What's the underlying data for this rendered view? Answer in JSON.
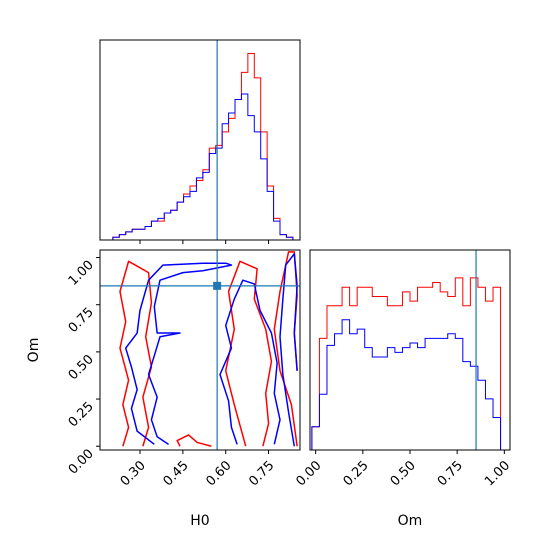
{
  "chart_data": [
    {
      "panel": "H0 marginal",
      "type": "histogram",
      "title": "",
      "xlabel": "",
      "ylabel": "",
      "xlim": [
        0.16,
        0.86
      ],
      "bins_left": [
        0.16,
        0.1825,
        0.205,
        0.2275,
        0.25,
        0.2725,
        0.295,
        0.3175,
        0.34,
        0.3625,
        0.385,
        0.4075,
        0.43,
        0.4525,
        0.475,
        0.4975,
        0.52,
        0.5425,
        0.565,
        0.5875,
        0.61,
        0.6325,
        0.655,
        0.6775,
        0.7,
        0.7225,
        0.745,
        0.7675,
        0.79,
        0.8125,
        0.835
      ],
      "bin_width": 0.0225,
      "series": [
        {
          "color": "#ff0000",
          "values": [
            0,
            0,
            1,
            2,
            3,
            4,
            4,
            5,
            7,
            7,
            10,
            11,
            14,
            17,
            20,
            22,
            26,
            34,
            35,
            40,
            45,
            52,
            62,
            69,
            60,
            40,
            20,
            8,
            2,
            1,
            0
          ]
        },
        {
          "color": "#0000ff",
          "values": [
            0,
            0,
            1,
            2,
            3,
            4,
            4,
            5,
            7,
            8,
            10,
            11,
            14,
            16,
            18,
            23,
            25,
            32,
            34,
            43,
            47,
            52,
            54,
            46,
            40,
            30,
            18,
            7,
            2,
            1,
            0
          ]
        }
      ],
      "ylim": [
        0,
        74
      ],
      "truth_line": 0.57
    },
    {
      "panel": "H0 vs Om joint",
      "type": "contour",
      "title": "",
      "xlabel": "H0",
      "ylabel": "Om",
      "xlim": [
        0.16,
        0.86
      ],
      "ylim": [
        -0.02,
        1.04
      ],
      "xticks": [
        "0.30",
        "0.45",
        "0.60",
        "0.75"
      ],
      "xtick_values": [
        0.3,
        0.45,
        0.6,
        0.75
      ],
      "yticks": [
        "0.00",
        "0.25",
        "0.50",
        "0.75",
        "1.00"
      ],
      "ytick_values": [
        0.0,
        0.25,
        0.5,
        0.75,
        1.0
      ],
      "truth_point": [
        0.57,
        0.85
      ],
      "series": [
        {
          "color": "#ff0000",
          "contours": [
            [
              [
                0.24,
                0.0
              ],
              [
                0.26,
                0.1
              ],
              [
                0.24,
                0.22
              ],
              [
                0.26,
                0.35
              ],
              [
                0.23,
                0.52
              ],
              [
                0.25,
                0.66
              ],
              [
                0.23,
                0.82
              ],
              [
                0.26,
                0.98
              ],
              [
                0.33,
                0.92
              ],
              [
                0.34,
                0.76
              ],
              [
                0.32,
                0.58
              ],
              [
                0.34,
                0.42
              ],
              [
                0.31,
                0.26
              ],
              [
                0.33,
                0.1
              ],
              [
                0.31,
                0.0
              ]
            ],
            [
              [
                0.67,
                0.0
              ],
              [
                0.63,
                0.22
              ],
              [
                0.6,
                0.4
              ],
              [
                0.63,
                0.62
              ],
              [
                0.61,
                0.82
              ],
              [
                0.65,
                0.98
              ],
              [
                0.71,
                0.94
              ],
              [
                0.7,
                0.78
              ],
              [
                0.74,
                0.62
              ],
              [
                0.76,
                0.45
              ],
              [
                0.74,
                0.28
              ],
              [
                0.75,
                0.12
              ],
              [
                0.73,
                0.0
              ]
            ],
            [
              [
                0.85,
                0.0
              ],
              [
                0.83,
                0.22
              ],
              [
                0.79,
                0.4
              ],
              [
                0.77,
                0.62
              ],
              [
                0.79,
                0.82
              ],
              [
                0.82,
                1.03
              ],
              [
                0.84,
                1.03
              ],
              [
                0.85,
                0.8
              ],
              [
                0.84,
                0.6
              ],
              [
                0.85,
                0.4
              ]
            ],
            [
              [
                0.44,
                0.0
              ],
              [
                0.43,
                0.03
              ],
              [
                0.47,
                0.06
              ],
              [
                0.5,
                0.02
              ],
              [
                0.55,
                0.0
              ]
            ]
          ]
        },
        {
          "color": "#0000ff",
          "contours": [
            [
              [
                0.35,
                0.01
              ],
              [
                0.29,
                0.08
              ],
              [
                0.27,
                0.2
              ],
              [
                0.29,
                0.3
              ],
              [
                0.27,
                0.42
              ],
              [
                0.25,
                0.52
              ],
              [
                0.29,
                0.6
              ],
              [
                0.3,
                0.72
              ],
              [
                0.33,
                0.88
              ],
              [
                0.38,
                0.96
              ],
              [
                0.52,
                0.97
              ],
              [
                0.6,
                0.97
              ],
              [
                0.62,
                0.96
              ],
              [
                0.52,
                0.93
              ],
              [
                0.45,
                0.92
              ],
              [
                0.37,
                0.88
              ],
              [
                0.35,
                0.74
              ],
              [
                0.36,
                0.6
              ],
              [
                0.44,
                0.6
              ],
              [
                0.37,
                0.58
              ],
              [
                0.35,
                0.48
              ],
              [
                0.33,
                0.38
              ],
              [
                0.36,
                0.26
              ],
              [
                0.34,
                0.14
              ],
              [
                0.36,
                0.05
              ],
              [
                0.4,
                0.01
              ]
            ],
            [
              [
                0.64,
                0.01
              ],
              [
                0.62,
                0.1
              ],
              [
                0.61,
                0.24
              ],
              [
                0.58,
                0.38
              ],
              [
                0.62,
                0.52
              ],
              [
                0.6,
                0.64
              ],
              [
                0.63,
                0.78
              ],
              [
                0.66,
                0.88
              ],
              [
                0.7,
                0.86
              ],
              [
                0.72,
                0.72
              ],
              [
                0.76,
                0.6
              ],
              [
                0.78,
                0.44
              ],
              [
                0.77,
                0.28
              ],
              [
                0.79,
                0.14
              ],
              [
                0.77,
                0.01
              ]
            ],
            [
              [
                0.84,
                0.0
              ],
              [
                0.82,
                0.18
              ],
              [
                0.8,
                0.38
              ],
              [
                0.79,
                0.58
              ],
              [
                0.8,
                0.78
              ],
              [
                0.81,
                0.96
              ],
              [
                0.84,
                1.02
              ],
              [
                0.85,
                0.85
              ],
              [
                0.84,
                0.6
              ],
              [
                0.85,
                0.4
              ]
            ]
          ]
        }
      ]
    },
    {
      "panel": "Om marginal",
      "type": "histogram",
      "title": "",
      "xlabel": "Om",
      "ylabel": "",
      "xlim": [
        -0.03,
        1.03
      ],
      "xticks": [
        "0.00",
        "0.25",
        "0.50",
        "0.75",
        "1.00"
      ],
      "xtick_values": [
        0.0,
        0.25,
        0.5,
        0.75,
        1.0
      ],
      "bins_left": [
        -0.02,
        0.02,
        0.06,
        0.1,
        0.14,
        0.18,
        0.22,
        0.26,
        0.3,
        0.34,
        0.38,
        0.42,
        0.46,
        0.5,
        0.54,
        0.58,
        0.62,
        0.66,
        0.7,
        0.74,
        0.78,
        0.82,
        0.86,
        0.9,
        0.94,
        0.98
      ],
      "bin_width": 0.04,
      "series": [
        {
          "color": "#ff0000",
          "values": [
            10,
            48,
            62,
            62,
            70,
            62,
            70,
            70,
            66,
            66,
            62,
            62,
            68,
            64,
            70,
            70,
            72,
            68,
            66,
            74,
            62,
            74,
            70,
            64,
            70,
            0
          ]
        },
        {
          "color": "#0000ff",
          "values": [
            10,
            24,
            45,
            50,
            56,
            50,
            52,
            44,
            40,
            40,
            44,
            42,
            44,
            46,
            44,
            48,
            48,
            48,
            50,
            48,
            38,
            36,
            30,
            22,
            14,
            0
          ]
        }
      ],
      "ylim": [
        0,
        86
      ],
      "truth_line": 0.85
    }
  ]
}
